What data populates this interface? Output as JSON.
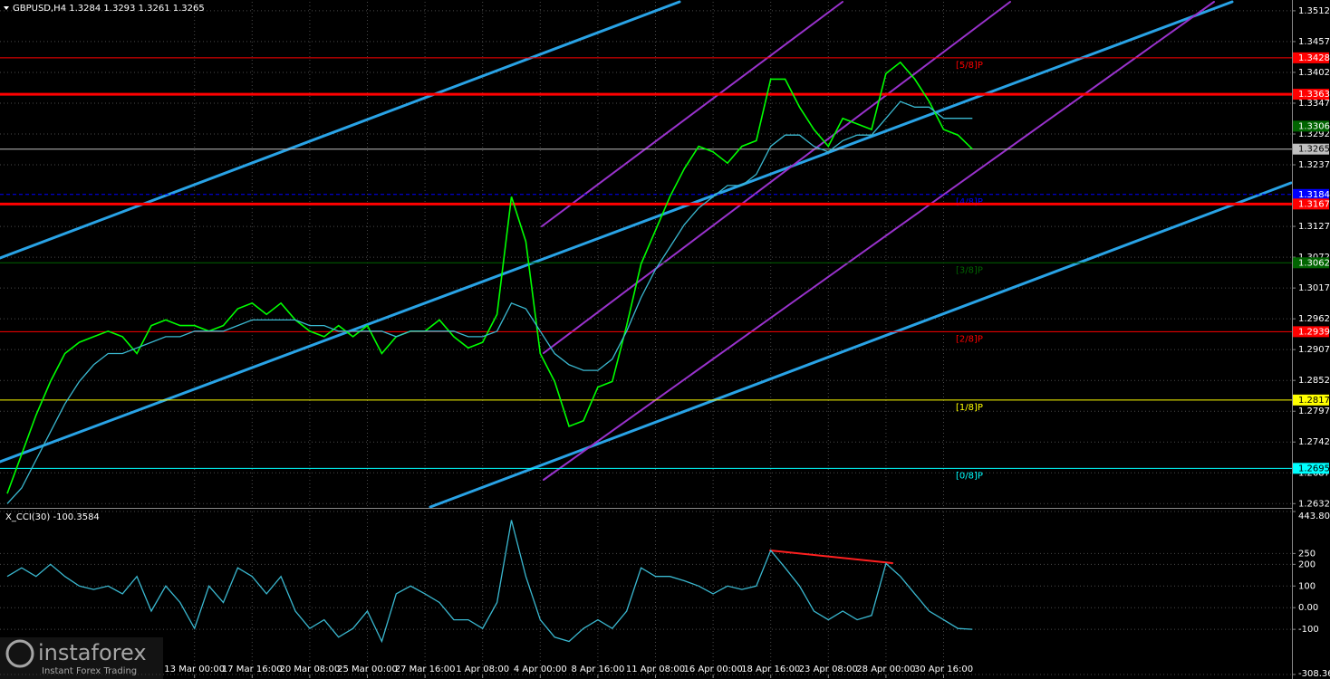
{
  "chart_data": [
    {
      "type": "line",
      "title": "GBPUSD,H4  1.3284 1.3293 1.3261 1.3265",
      "categories": [
        null,
        null,
        null,
        null,
        null,
        null,
        null,
        null,
        null,
        null,
        null,
        null,
        null,
        "13 Mar 00:00",
        null,
        null,
        null,
        "17 Mar 16:00",
        null,
        null,
        null,
        "20 Mar 08:00",
        null,
        null,
        null,
        "25 Mar 00:00",
        null,
        null,
        null,
        "27 Mar 16:00",
        null,
        null,
        null,
        "1 Apr 08:00",
        null,
        null,
        null,
        "4 Apr 00:00",
        null,
        null,
        null,
        "8 Apr 16:00",
        null,
        null,
        null,
        "11 Apr 08:00",
        null,
        null,
        null,
        "16 Apr 00:00",
        null,
        null,
        null,
        "18 Apr 16:00",
        null,
        null,
        null,
        "23 Apr 08:00",
        null,
        null,
        null,
        "28 Apr 00:00",
        null,
        null,
        null,
        "30 Apr 16:00",
        null,
        null
      ],
      "series": [
        {
          "color": "#00ff00",
          "values": [
            1.265,
            1.272,
            1.279,
            1.285,
            1.29,
            1.292,
            1.293,
            1.294,
            1.293,
            1.29,
            1.295,
            1.296,
            1.295,
            1.295,
            1.294,
            1.295,
            1.298,
            1.299,
            1.297,
            1.299,
            1.296,
            1.294,
            1.293,
            1.295,
            1.293,
            1.295,
            1.29,
            1.293,
            1.294,
            1.294,
            1.296,
            1.293,
            1.291,
            1.292,
            1.297,
            1.318,
            1.31,
            1.29,
            1.285,
            1.277,
            1.278,
            1.284,
            1.285,
            1.295,
            1.306,
            1.312,
            1.318,
            1.323,
            1.327,
            1.326,
            1.324,
            1.327,
            1.328,
            1.339,
            1.339,
            1.334,
            1.33,
            1.327,
            1.332,
            1.331,
            1.33,
            1.34,
            1.342,
            1.339,
            1.335,
            1.33,
            1.329,
            1.3265
          ]
        },
        {
          "color": "#3ab8d0",
          "values": [
            1.2632,
            1.266,
            1.271,
            1.276,
            1.281,
            1.285,
            1.288,
            1.29,
            1.29,
            1.291,
            1.292,
            1.293,
            1.293,
            1.294,
            1.294,
            1.294,
            1.295,
            1.296,
            1.296,
            1.296,
            1.296,
            1.295,
            1.295,
            1.294,
            1.294,
            1.294,
            1.294,
            1.293,
            1.294,
            1.294,
            1.294,
            1.294,
            1.293,
            1.293,
            1.294,
            1.299,
            1.298,
            1.294,
            1.29,
            1.288,
            1.287,
            1.287,
            1.289,
            1.294,
            1.3,
            1.305,
            1.309,
            1.313,
            1.316,
            1.318,
            1.32,
            1.32,
            1.322,
            1.327,
            1.329,
            1.329,
            1.327,
            1.326,
            1.328,
            1.329,
            1.329,
            1.332,
            1.335,
            1.334,
            1.334,
            1.332,
            1.332,
            1.332
          ]
        }
      ],
      "ylim": [
        1.2626,
        1.3528
      ],
      "yticks": [
        1.3512,
        1.3457,
        1.3402,
        1.3347,
        1.3292,
        1.3237,
        1.3127,
        1.3072,
        1.3017,
        1.2962,
        1.2907,
        1.2852,
        1.2797,
        1.2742,
        1.2687,
        1.2632
      ],
      "grid": true,
      "levels": [
        {
          "value": 1.3428,
          "color": "#ff0000",
          "style": "thin",
          "label": "[5/8]P"
        },
        {
          "value": 1.3363,
          "color": "#ff0000",
          "style": "thick"
        },
        {
          "value": 1.3306,
          "color": "#006400",
          "style": "none"
        },
        {
          "value": 1.3265,
          "color": "#c0c0c0",
          "style": "thin"
        },
        {
          "value": 1.3184,
          "color": "#0000ff",
          "style": "dashed",
          "label": "[4/8]P"
        },
        {
          "value": 1.3167,
          "color": "#ff0000",
          "style": "thick"
        },
        {
          "value": 1.3062,
          "color": "#006400",
          "style": "thin",
          "label": "[3/8]P"
        },
        {
          "value": 1.2939,
          "color": "#ff0000",
          "style": "thin",
          "label": "[2/8]P"
        },
        {
          "value": 1.2817,
          "color": "#ffff00",
          "style": "thin",
          "label": "[1/8]P"
        },
        {
          "value": 1.2695,
          "color": "#00ffff",
          "style": "thin",
          "label": "[0/8]P"
        }
      ]
    },
    {
      "type": "line",
      "title": "X_CCI(30) -100.3584",
      "series": [
        {
          "color": "#3ab8d0",
          "values": [
            144,
            184,
            144,
            200,
            144,
            100,
            84,
            100,
            64,
            144,
            -16,
            100,
            24,
            -96,
            100,
            24,
            184,
            144,
            64,
            144,
            -16,
            -96,
            -56,
            -136,
            -96,
            -16,
            -156,
            64,
            100,
            64,
            24,
            -56,
            -56,
            -96,
            24,
            404,
            144,
            -56,
            -136,
            -156,
            -96,
            -56,
            -96,
            -16,
            184,
            144,
            144,
            124,
            100,
            64,
            100,
            84,
            100,
            264,
            184,
            100,
            -16,
            -56,
            -16,
            -56,
            -36,
            204,
            144,
            64,
            -16,
            -56,
            -96,
            -100
          ]
        }
      ],
      "ylim": [
        -308.364,
        443.8052
      ],
      "yticks": [
        443.8052,
        250,
        200,
        100,
        {
          "value": 0,
          "label": "0.00"
        },
        -100,
        -308.364
      ],
      "grid": true
    }
  ],
  "watermark": {
    "brand": "instaforex",
    "tagline": "Instant Forex Trading"
  }
}
